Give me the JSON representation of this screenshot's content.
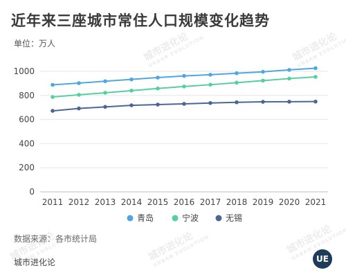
{
  "title": "近年来三座城市常住人口规模变化趋势",
  "unit": "单位：万人",
  "watermark": "城市进化论",
  "watermark_sub": "URBAN EVOLUTION",
  "source": "数据来源：各市统计局",
  "brand": "城市进化论",
  "logo": "UE",
  "chart_data": {
    "type": "line",
    "x": [
      2011,
      2012,
      2013,
      2014,
      2015,
      2016,
      2017,
      2018,
      2019,
      2020,
      2021
    ],
    "ylim": [
      0,
      1000
    ],
    "yticks": [
      0,
      200,
      400,
      600,
      800,
      1000
    ],
    "grid": true,
    "legend": "bottom",
    "series": [
      {
        "name": "青岛",
        "color": "#4ea6e3",
        "values": [
          888,
          902,
          918,
          933,
          948,
          962,
          972,
          984,
          996,
          1012,
          1026
        ]
      },
      {
        "name": "宁波",
        "color": "#54d09f",
        "values": [
          787,
          805,
          822,
          840,
          858,
          874,
          889,
          906,
          923,
          940,
          954
        ]
      },
      {
        "name": "无锡",
        "color": "#4b6595",
        "values": [
          672,
          692,
          705,
          718,
          724,
          730,
          737,
          743,
          747,
          748,
          749
        ]
      }
    ]
  }
}
